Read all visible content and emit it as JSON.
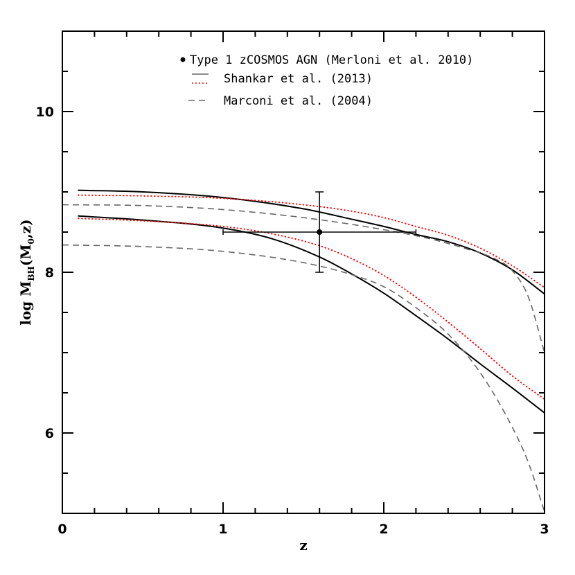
{
  "chart_data": {
    "type": "line",
    "xlabel": "z",
    "ylabel": {
      "main": "log M",
      "sub1": "BH",
      "mid": "(M",
      "sub2": "0",
      "end": ",z)"
    },
    "xlim": [
      0,
      3
    ],
    "ylim": [
      5,
      11
    ],
    "x_ticks": [
      0,
      1,
      2,
      3
    ],
    "x_tick_labels": [
      "0",
      "1",
      "2",
      "3"
    ],
    "y_ticks": [
      6,
      8,
      10
    ],
    "y_tick_labels": [
      "6",
      "8",
      "10"
    ],
    "x_minor_step": 0.2,
    "y_minor_step": 0.5,
    "legend_position": "top-right",
    "legend": [
      {
        "label": "Type 1 zCOSMOS AGN (Merloni et al. 2010)",
        "marker": "point",
        "color": "#000000"
      },
      {
        "label": "Shankar et al. (2013)",
        "style": "solid",
        "color": "#666666"
      },
      {
        "label": "Shankar et al. (2013)",
        "style": "dotted",
        "color": "#ff0000"
      },
      {
        "label": "Marconi et al. (2004)",
        "style": "dashed",
        "color": "#666666"
      }
    ],
    "data_point": {
      "x": 1.6,
      "y": 8.5,
      "x_err": [
        1.0,
        2.2
      ],
      "y_err": [
        8.0,
        9.0
      ]
    },
    "series": [
      {
        "style": "solid",
        "color": "#000000",
        "x": [
          0.1,
          0.5,
          1.0,
          1.5,
          1.8,
          2.0,
          2.2,
          2.4,
          2.6,
          2.8,
          3.0
        ],
        "y": [
          9.02,
          9.0,
          8.93,
          8.79,
          8.66,
          8.57,
          8.47,
          8.38,
          8.24,
          8.03,
          7.73
        ]
      },
      {
        "style": "solid",
        "color": "#000000",
        "x": [
          0.1,
          0.5,
          1.0,
          1.3,
          1.6,
          1.8,
          2.0,
          2.2,
          2.4,
          2.6,
          2.8,
          3.0
        ],
        "y": [
          8.7,
          8.65,
          8.55,
          8.42,
          8.19,
          7.98,
          7.74,
          7.46,
          7.17,
          6.86,
          6.56,
          6.25
        ]
      },
      {
        "style": "dotted",
        "color": "#ff0000",
        "x": [
          0.1,
          0.5,
          1.0,
          1.5,
          1.8,
          2.0,
          2.2,
          2.4,
          2.6,
          2.8,
          3.0
        ],
        "y": [
          8.96,
          8.95,
          8.92,
          8.84,
          8.76,
          8.68,
          8.57,
          8.46,
          8.3,
          8.08,
          7.81
        ]
      },
      {
        "style": "dotted",
        "color": "#ff0000",
        "x": [
          0.1,
          0.5,
          1.0,
          1.3,
          1.6,
          1.8,
          2.0,
          2.2,
          2.4,
          2.6,
          2.8,
          3.0
        ],
        "y": [
          8.67,
          8.64,
          8.57,
          8.48,
          8.33,
          8.17,
          7.96,
          7.69,
          7.38,
          7.05,
          6.71,
          6.42
        ]
      },
      {
        "style": "dashed",
        "color": "#666666",
        "x": [
          0.0,
          0.5,
          1.0,
          1.5,
          2.0,
          2.3,
          2.5,
          2.7,
          2.8,
          2.9,
          3.0
        ],
        "y": [
          8.84,
          8.83,
          8.78,
          8.68,
          8.53,
          8.41,
          8.3,
          8.16,
          8.02,
          7.69,
          7.0
        ]
      },
      {
        "style": "dashed",
        "color": "#666666",
        "x": [
          0.0,
          0.5,
          1.0,
          1.5,
          1.8,
          2.0,
          2.2,
          2.4,
          2.6,
          2.8,
          2.9,
          3.0
        ],
        "y": [
          8.34,
          8.32,
          8.26,
          8.12,
          7.97,
          7.82,
          7.56,
          7.23,
          6.75,
          6.07,
          5.63,
          5.02
        ]
      }
    ]
  }
}
